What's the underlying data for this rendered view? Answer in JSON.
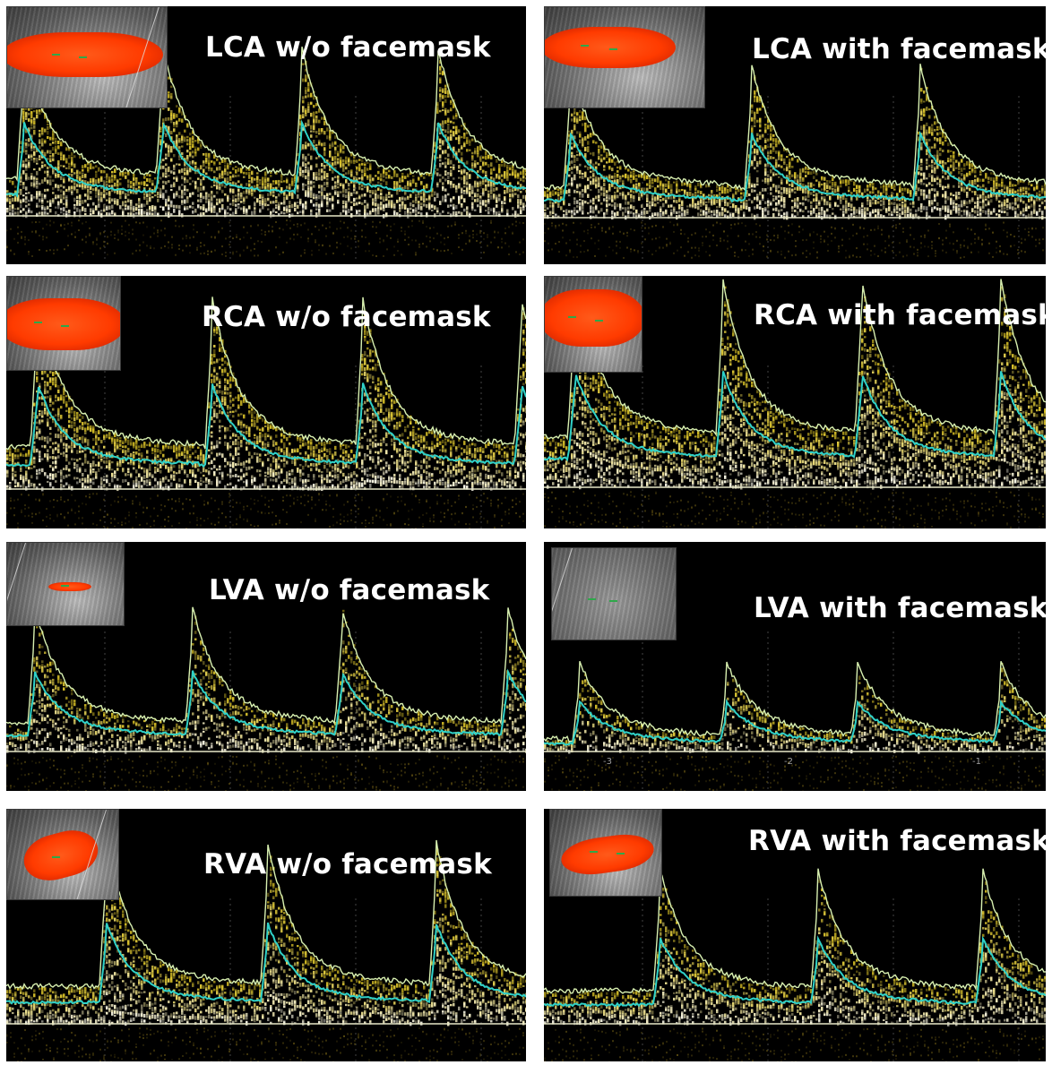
{
  "panels": [
    {
      "id": "lca-wo",
      "title": "LCA w/o facemask"
    },
    {
      "id": "lca-with",
      "title": "LCA with facemask"
    },
    {
      "id": "rca-wo",
      "title": "RCA w/o facemask"
    },
    {
      "id": "rca-with",
      "title": "RCA with facemask"
    },
    {
      "id": "lva-wo",
      "title": "LVA w/o facemask"
    },
    {
      "id": "lva-with",
      "title": "LVA with facemask",
      "axis_ticks": [
        "-3",
        "-2",
        "-1"
      ]
    },
    {
      "id": "rva-wo",
      "title": "RVA w/o facemask"
    },
    {
      "id": "rva-with",
      "title": "RVA with facemask"
    }
  ],
  "colors": {
    "background": "#000000",
    "spectrum": "#d9c23a",
    "envelope": "#d8f0b0",
    "mean_trace": "#2fd1c8",
    "baseline": "#e8e8c8",
    "doppler_flow": "#ff3b00"
  }
}
